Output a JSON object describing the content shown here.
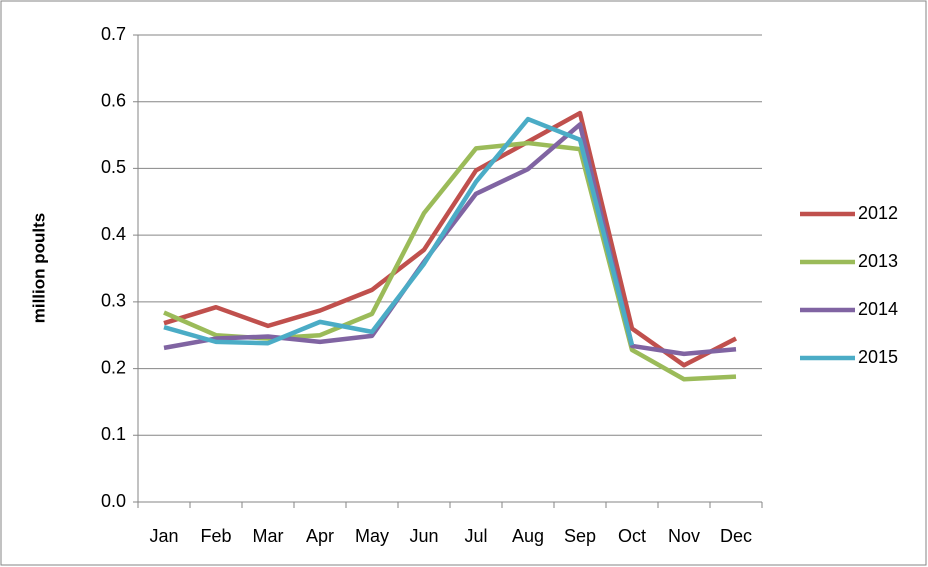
{
  "chart_data": {
    "type": "line",
    "y_label": "million poults",
    "categories": [
      "Jan",
      "Feb",
      "Mar",
      "Apr",
      "May",
      "Jun",
      "Jul",
      "Aug",
      "Sep",
      "Oct",
      "Nov",
      "Dec"
    ],
    "series": [
      {
        "name": "2012",
        "color": "#c0504d",
        "values": [
          0.268,
          0.292,
          0.264,
          0.287,
          0.318,
          0.378,
          0.497,
          0.54,
          0.583,
          0.26,
          0.205,
          0.245
        ]
      },
      {
        "name": "2013",
        "color": "#9bbb59",
        "values": [
          0.284,
          0.25,
          0.245,
          0.25,
          0.282,
          0.433,
          0.53,
          0.538,
          0.529,
          0.228,
          0.184,
          0.188
        ]
      },
      {
        "name": "2014",
        "color": "#8064a2",
        "values": [
          0.231,
          0.245,
          0.248,
          0.24,
          0.249,
          0.36,
          0.462,
          0.499,
          0.566,
          0.234,
          0.222,
          0.229
        ]
      },
      {
        "name": "2015",
        "color": "#4bacc6",
        "values": [
          0.262,
          0.24,
          0.238,
          0.27,
          0.255,
          0.357,
          0.48,
          0.574,
          0.543,
          0.235,
          null,
          null
        ]
      }
    ],
    "ylim": [
      0,
      0.7
    ],
    "yticks": [
      {
        "value": 0,
        "label": "0.0"
      },
      0.1,
      0.2,
      0.3,
      0.4,
      0.5,
      0.6,
      0.7
    ],
    "grid": true,
    "legend": "right"
  }
}
